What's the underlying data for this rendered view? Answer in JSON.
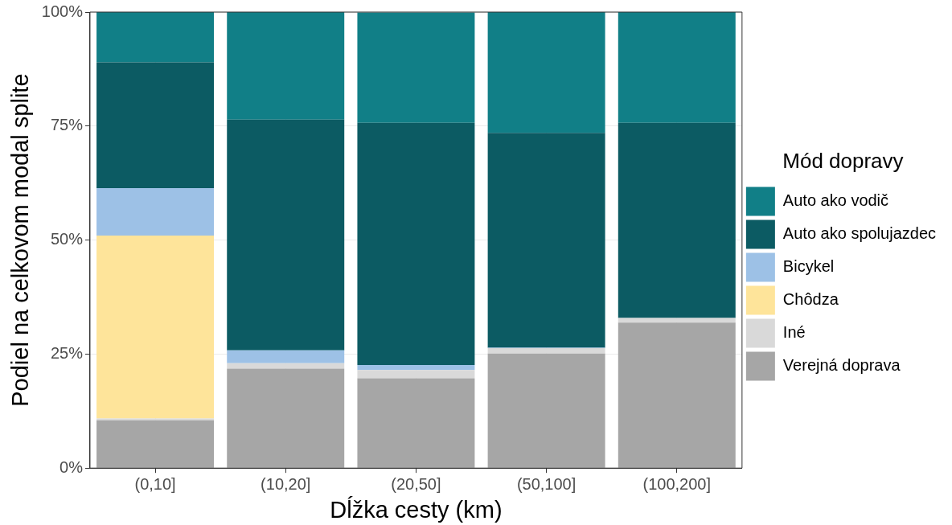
{
  "chart_data": {
    "type": "bar",
    "stacked": true,
    "xlabel": "Dĺžka cesty (km)",
    "ylabel": "Podiel na celkovom modal splite",
    "legend_title": "Mód dopravy",
    "legend": "right",
    "grid": true,
    "categories": [
      "(0,10]",
      "(10,20]",
      "(20,50]",
      "(50,100]",
      "(100,200]"
    ],
    "ylim": [
      0,
      100
    ],
    "yticks": [
      {
        "value": 0,
        "label": "0%"
      },
      {
        "value": 25,
        "label": "25%"
      },
      {
        "value": 50,
        "label": "50%"
      },
      {
        "value": 75,
        "label": "75%"
      },
      {
        "value": 100,
        "label": "100%"
      }
    ],
    "series": [
      {
        "name": "Verejná doprava",
        "color": "#a6a6a6",
        "values": [
          10.5,
          21.8,
          19.7,
          25.1,
          31.9
        ]
      },
      {
        "name": "Iné",
        "color": "#d9d9d9",
        "values": [
          0.4,
          1.2,
          1.8,
          1.2,
          1.0
        ]
      },
      {
        "name": "Chôdza",
        "color": "#fee49a",
        "values": [
          40.1,
          0,
          null,
          0,
          0
        ]
      },
      {
        "name": "Bicykel",
        "color": "#9dc1e6",
        "values": [
          10.4,
          2.8,
          1.1,
          0.1,
          0
        ]
      },
      {
        "name": "Auto ako spolujazdec",
        "color": "#0c5b63",
        "values": [
          27.6,
          50.6,
          53.1,
          47.1,
          42.8
        ]
      },
      {
        "name": "Auto ako vodič",
        "color": "#117f87",
        "values": [
          11.0,
          23.6,
          24.2,
          26.5,
          24.3
        ]
      }
    ]
  }
}
